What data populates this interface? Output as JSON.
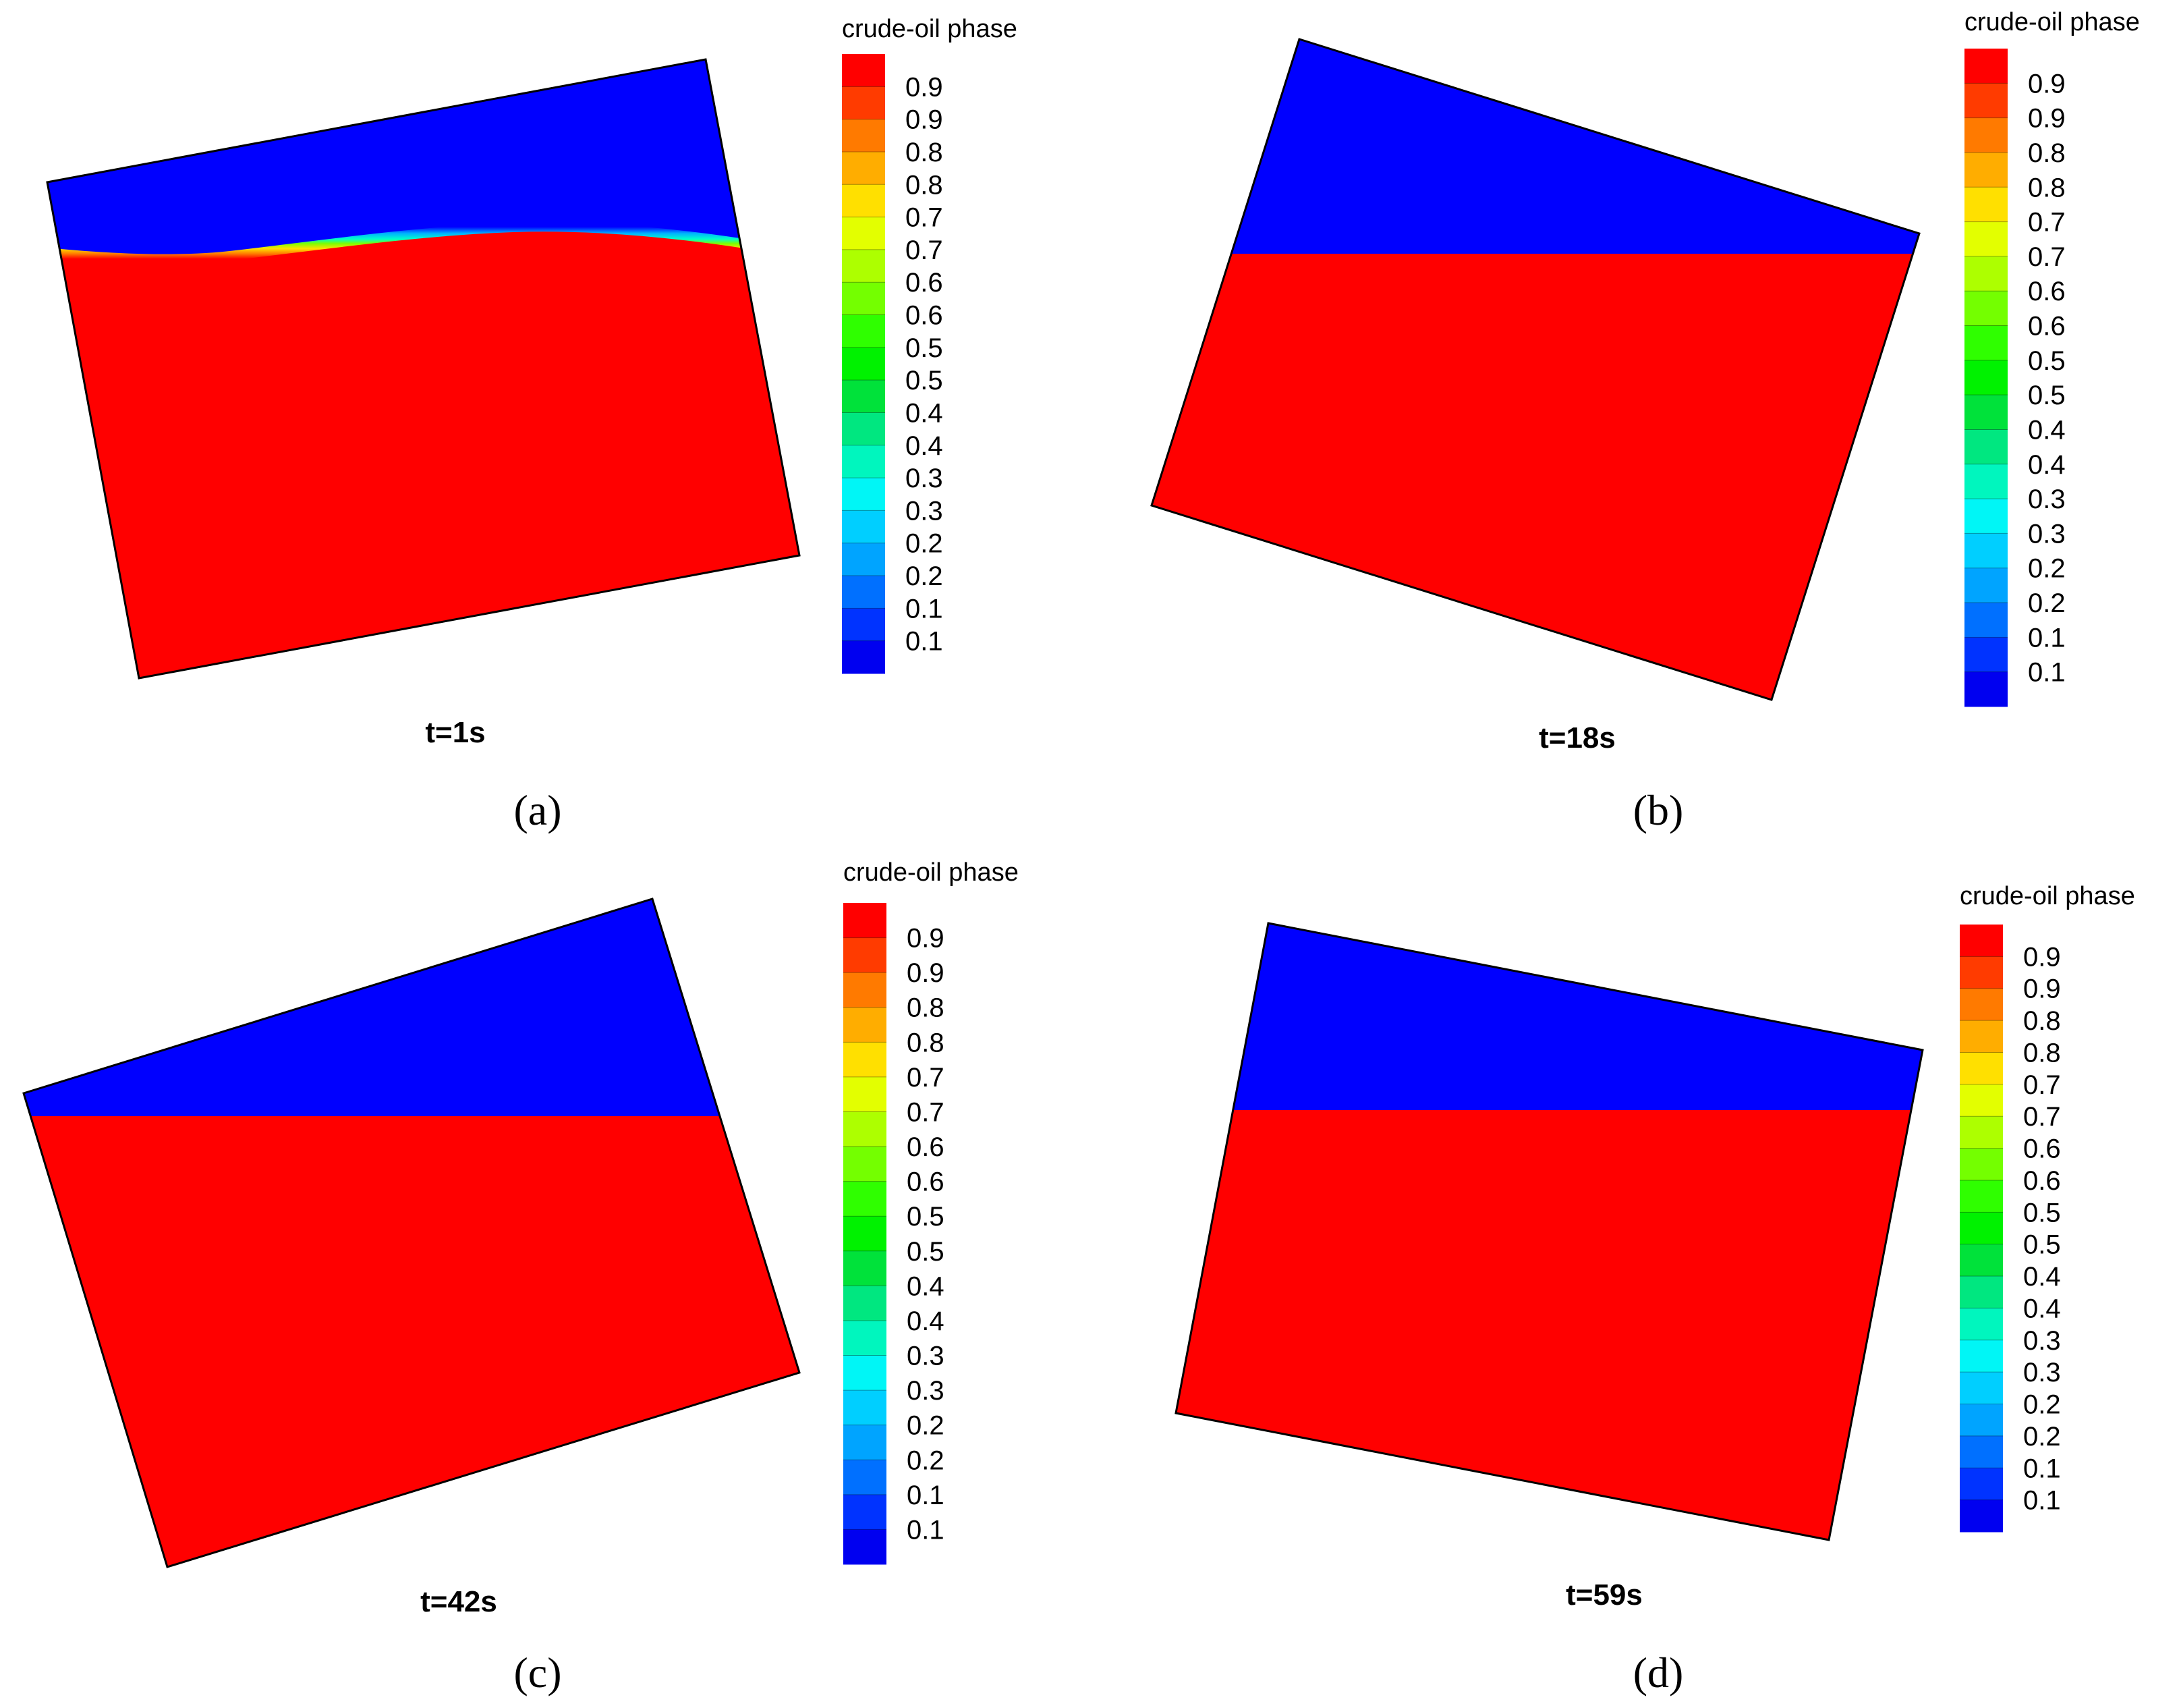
{
  "figure": {
    "panels": [
      {
        "id": "a",
        "caption": "(a)",
        "time_label": "t=1s",
        "legend_title": "crude-oil phase",
        "levels": [
          "0.9",
          "0.9",
          "0.8",
          "0.8",
          "0.7",
          "0.7",
          "0.6",
          "0.6",
          "0.5",
          "0.5",
          "0.4",
          "0.4",
          "0.3",
          "0.3",
          "0.2",
          "0.2",
          "0.1",
          "0.1"
        ]
      },
      {
        "id": "b",
        "caption": "(b)",
        "time_label": "t=18s",
        "legend_title": "crude-oil phase",
        "levels": [
          "0.9",
          "0.9",
          "0.8",
          "0.8",
          "0.7",
          "0.7",
          "0.6",
          "0.6",
          "0.5",
          "0.5",
          "0.4",
          "0.4",
          "0.3",
          "0.3",
          "0.2",
          "0.2",
          "0.1",
          "0.1"
        ]
      },
      {
        "id": "c",
        "caption": "(c)",
        "time_label": "t=42s",
        "legend_title": "crude-oil phase",
        "levels": [
          "0.9",
          "0.9",
          "0.8",
          "0.8",
          "0.7",
          "0.7",
          "0.6",
          "0.6",
          "0.5",
          "0.5",
          "0.4",
          "0.4",
          "0.3",
          "0.3",
          "0.2",
          "0.2",
          "0.1",
          "0.1"
        ]
      },
      {
        "id": "d",
        "caption": "(d)",
        "time_label": "t=59s",
        "legend_title": "crude-oil phase",
        "levels": [
          "0.9",
          "0.9",
          "0.8",
          "0.8",
          "0.7",
          "0.7",
          "0.6",
          "0.6",
          "0.5",
          "0.5",
          "0.4",
          "0.4",
          "0.3",
          "0.3",
          "0.2",
          "0.2",
          "0.1",
          "0.1"
        ]
      }
    ],
    "colors": {
      "oil": "#ff0000",
      "water": "#0000ff",
      "colorbar": [
        "#ff0000",
        "#ff3b00",
        "#ff7a00",
        "#ffad00",
        "#ffe000",
        "#e3ff00",
        "#adff00",
        "#74ff00",
        "#2fff00",
        "#00f200",
        "#00e23a",
        "#00e780",
        "#00f6be",
        "#00f6f6",
        "#00cfff",
        "#00a4ff",
        "#0070ff",
        "#0033ff",
        "#0000f0"
      ]
    }
  }
}
